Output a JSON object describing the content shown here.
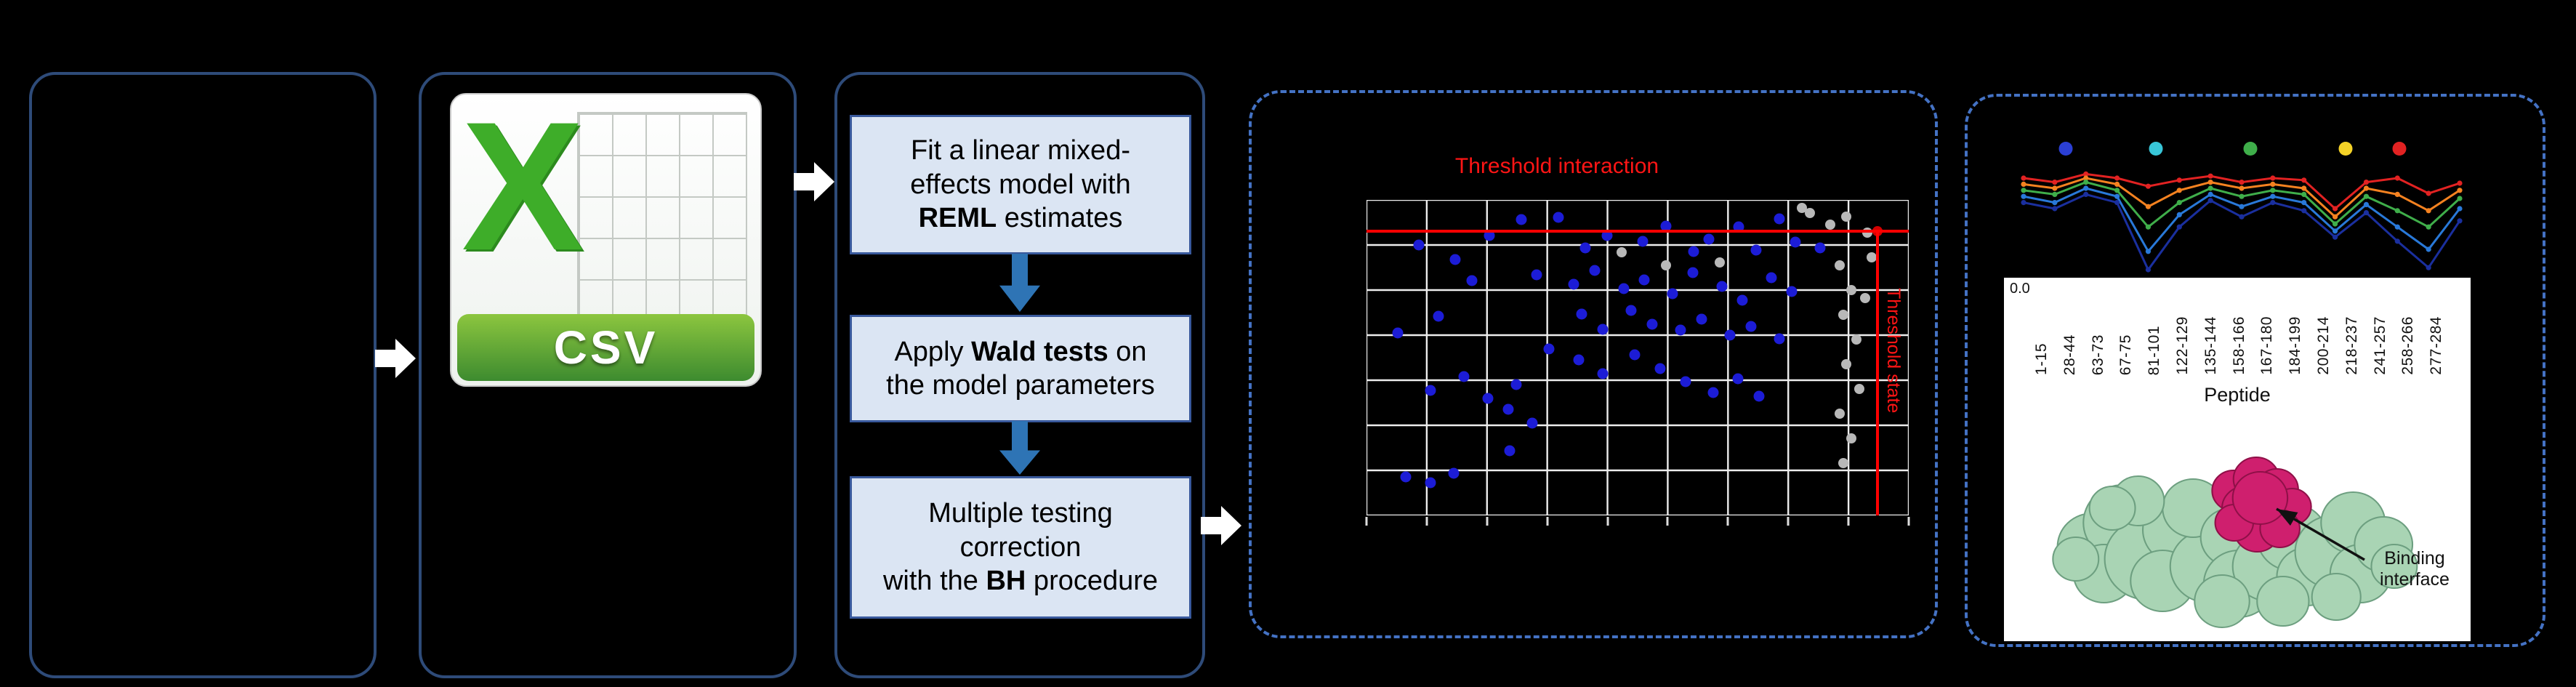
{
  "figure": {
    "background": "#000000",
    "solid_border": "#2e4b79",
    "dash_border": "#4472c4"
  },
  "csv_box": {
    "excel_x": "X",
    "csv_label": "CSV"
  },
  "method_box": {
    "steps": [
      {
        "lines": [
          {
            "pre": "Fit a linear mixed-"
          },
          {
            "pre": "effects model with"
          },
          {
            "bold": "REML",
            "post": " estimates"
          }
        ]
      },
      {
        "lines": [
          {
            "pre": "Apply ",
            "bold": "Wald tests",
            "post": " on"
          },
          {
            "pre": "the model parameters"
          }
        ]
      },
      {
        "lines": [
          {
            "pre": "Multiple testing"
          },
          {
            "pre": "correction"
          },
          {
            "pre": "with the ",
            "bold": "BH",
            "post": " procedure"
          }
        ]
      }
    ]
  },
  "scatter_panel": {
    "threshold_top_label": "Threshold interaction",
    "threshold_side_label": "Threshold state",
    "chart_data": {
      "type": "scatter",
      "grid": {
        "v_lines": 10,
        "h_lines": 8
      },
      "threshold_h_pct": 9.9,
      "threshold_v_pct": 94.2,
      "series": [
        {
          "name": "significant-peptides",
          "color": "#1c1cd6",
          "size": 15,
          "points": [
            [
              9.7,
              14.2
            ],
            [
              16.3,
              18.8
            ],
            [
              22.7,
              11.4
            ],
            [
              28.6,
              6.3
            ],
            [
              35.4,
              5.6
            ],
            [
              40.3,
              15.2
            ],
            [
              44.4,
              11.3
            ],
            [
              50.9,
              13.1
            ],
            [
              55.2,
              8.2
            ],
            [
              60.3,
              16.3
            ],
            [
              63.2,
              12.4
            ],
            [
              68.6,
              8.5
            ],
            [
              71.8,
              16.0
            ],
            [
              76.2,
              6.0
            ],
            [
              79.1,
              13.4
            ],
            [
              83.6,
              15.2
            ],
            [
              31.4,
              23.8
            ],
            [
              38.2,
              26.7
            ],
            [
              42.1,
              22.3
            ],
            [
              47.4,
              28.2
            ],
            [
              51.2,
              25.4
            ],
            [
              56.4,
              29.8
            ],
            [
              60.2,
              23.0
            ],
            [
              65.6,
              27.5
            ],
            [
              69.3,
              31.7
            ],
            [
              74.6,
              24.6
            ],
            [
              78.4,
              29.0
            ],
            [
              39.7,
              36.1
            ],
            [
              43.6,
              41.0
            ],
            [
              48.8,
              35.0
            ],
            [
              52.7,
              39.5
            ],
            [
              57.9,
              41.3
            ],
            [
              61.8,
              37.9
            ],
            [
              67.0,
              42.8
            ],
            [
              70.9,
              40.0
            ],
            [
              76.1,
              43.9
            ],
            [
              33.6,
              47.3
            ],
            [
              39.1,
              50.6
            ],
            [
              43.6,
              55.1
            ],
            [
              49.4,
              49.1
            ],
            [
              54.2,
              53.5
            ],
            [
              58.8,
              57.7
            ],
            [
              11.8,
              60.3
            ],
            [
              17.9,
              55.9
            ],
            [
              22.4,
              62.9
            ],
            [
              27.6,
              58.5
            ],
            [
              63.9,
              61.1
            ],
            [
              68.5,
              56.7
            ],
            [
              13.3,
              36.9
            ],
            [
              5.8,
              42.1
            ],
            [
              26.1,
              66.3
            ],
            [
              30.6,
              70.7
            ],
            [
              72.4,
              62.1
            ],
            [
              19.4,
              25.6
            ],
            [
              7.3,
              87.9
            ],
            [
              11.8,
              89.7
            ],
            [
              16.1,
              86.6
            ],
            [
              26.4,
              79.6
            ]
          ]
        },
        {
          "name": "non-significant-peptides",
          "color": "#b8b8b8",
          "size": 14,
          "points": [
            [
              81.8,
              4.2
            ],
            [
              85.5,
              7.8
            ],
            [
              88.5,
              5.2
            ],
            [
              92.4,
              10.4
            ],
            [
              87.3,
              20.8
            ],
            [
              89.4,
              28.6
            ],
            [
              87.9,
              36.5
            ],
            [
              90.3,
              44.3
            ],
            [
              88.5,
              52.1
            ],
            [
              90.9,
              59.9
            ],
            [
              87.3,
              67.7
            ],
            [
              89.4,
              75.5
            ],
            [
              87.9,
              83.3
            ],
            [
              55.2,
              20.8
            ],
            [
              47.0,
              16.7
            ],
            [
              65.2,
              19.8
            ],
            [
              80.3,
              2.5
            ],
            [
              93.1,
              18.2
            ],
            [
              92.0,
              31.0
            ]
          ]
        },
        {
          "name": "threshold-intersection",
          "color": "#d40000",
          "size": 14,
          "points": [
            [
              94.2,
              9.9
            ]
          ]
        }
      ]
    }
  },
  "results_panel": {
    "y_tick": "0.0",
    "x_axis_label": "Peptide",
    "binding_label": "Binding interface",
    "structure_colors": {
      "surface": "#a9d4b4",
      "surface_edge": "#6d9f80",
      "interface": "#cf1f6e",
      "interface_edge": "#8f1048"
    },
    "chart_data": {
      "type": "line",
      "x_labels": [
        "1-15",
        "28-44",
        "63-73",
        "67-75",
        "81-101",
        "122-129",
        "135-144",
        "158-166",
        "167-180",
        "184-199",
        "200-214",
        "218-237",
        "241-257",
        "258-266",
        "277-284"
      ],
      "legend_dots": [
        {
          "name": "time-1",
          "color": "#2b3fd4",
          "x_pct": 11
        },
        {
          "name": "time-2",
          "color": "#38c6d8",
          "x_pct": 31
        },
        {
          "name": "time-3",
          "color": "#3fae4a",
          "x_pct": 52
        },
        {
          "name": "time-4",
          "color": "#f5d327",
          "x_pct": 73
        },
        {
          "name": "time-5",
          "color": "#e22222",
          "x_pct": 85
        }
      ],
      "series": [
        {
          "name": "t5",
          "color": "#e22222",
          "depths": [
            0.1,
            0.14,
            0.06,
            0.1,
            0.18,
            0.12,
            0.08,
            0.14,
            0.1,
            0.12,
            0.4,
            0.14,
            0.1,
            0.25,
            0.15
          ]
        },
        {
          "name": "t4",
          "color": "#f58220",
          "depths": [
            0.16,
            0.2,
            0.1,
            0.16,
            0.38,
            0.22,
            0.14,
            0.2,
            0.16,
            0.2,
            0.48,
            0.2,
            0.26,
            0.42,
            0.22
          ]
        },
        {
          "name": "t3",
          "color": "#3fae4a",
          "depths": [
            0.22,
            0.26,
            0.14,
            0.22,
            0.58,
            0.34,
            0.2,
            0.28,
            0.22,
            0.26,
            0.55,
            0.28,
            0.42,
            0.58,
            0.3
          ]
        },
        {
          "name": "t2",
          "color": "#2979d9",
          "depths": [
            0.28,
            0.34,
            0.2,
            0.28,
            0.82,
            0.46,
            0.26,
            0.38,
            0.28,
            0.34,
            0.62,
            0.36,
            0.58,
            0.8,
            0.4
          ]
        },
        {
          "name": "t1",
          "color": "#1a2f9e",
          "depths": [
            0.34,
            0.4,
            0.26,
            0.34,
            1.0,
            0.58,
            0.32,
            0.48,
            0.34,
            0.42,
            0.68,
            0.44,
            0.72,
            0.98,
            0.52
          ]
        }
      ]
    }
  }
}
